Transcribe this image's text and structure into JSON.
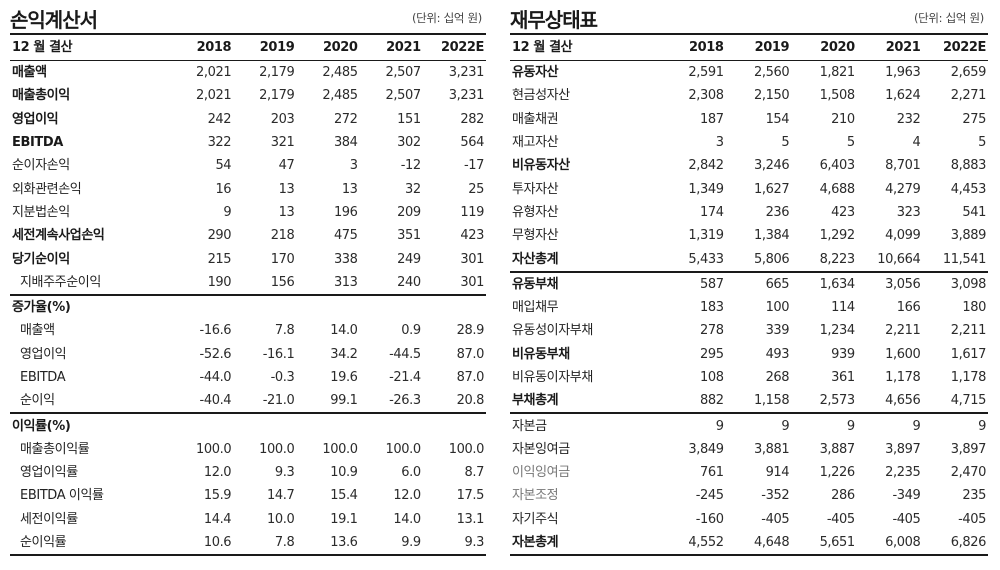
{
  "income_statement": {
    "title": "손익계산서",
    "unit": "(단위: 십억 원)",
    "header": {
      "label": "12 월 결산",
      "years": [
        "2018",
        "2019",
        "2020",
        "2021",
        "2022E"
      ]
    },
    "rows": [
      {
        "label": "매출액",
        "style": "bold",
        "values": [
          "2,021",
          "2,179",
          "2,485",
          "2,507",
          "3,231"
        ]
      },
      {
        "label": "매출총이익",
        "style": "bold",
        "values": [
          "2,021",
          "2,179",
          "2,485",
          "2,507",
          "3,231"
        ]
      },
      {
        "label": "영업이익",
        "style": "bold",
        "values": [
          "242",
          "203",
          "272",
          "151",
          "282"
        ]
      },
      {
        "label": "EBITDA",
        "style": "bold",
        "values": [
          "322",
          "321",
          "384",
          "302",
          "564"
        ]
      },
      {
        "label": "순이자손익",
        "style": "normal",
        "values": [
          "54",
          "47",
          "3",
          "-12",
          "-17"
        ]
      },
      {
        "label": "외화관련손익",
        "style": "normal",
        "values": [
          "16",
          "13",
          "13",
          "32",
          "25"
        ]
      },
      {
        "label": "지분법손익",
        "style": "normal",
        "values": [
          "9",
          "13",
          "196",
          "209",
          "119"
        ]
      },
      {
        "label": "세전계속사업손익",
        "style": "bold",
        "values": [
          "290",
          "218",
          "475",
          "351",
          "423"
        ]
      },
      {
        "label": "당기순이익",
        "style": "bold",
        "values": [
          "215",
          "170",
          "338",
          "249",
          "301"
        ]
      },
      {
        "label": "지배주주순이익",
        "style": "sub",
        "values": [
          "190",
          "156",
          "313",
          "240",
          "301"
        ]
      }
    ],
    "growth": {
      "title": "증가율(%)",
      "rows": [
        {
          "label": "매출액",
          "values": [
            "-16.6",
            "7.8",
            "14.0",
            "0.9",
            "28.9"
          ]
        },
        {
          "label": "영업이익",
          "values": [
            "-52.6",
            "-16.1",
            "34.2",
            "-44.5",
            "87.0"
          ]
        },
        {
          "label": "EBITDA",
          "values": [
            "-44.0",
            "-0.3",
            "19.6",
            "-21.4",
            "87.0"
          ]
        },
        {
          "label": "순이익",
          "values": [
            "-40.4",
            "-21.0",
            "99.1",
            "-26.3",
            "20.8"
          ]
        }
      ]
    },
    "margin": {
      "title": "이익률(%)",
      "rows": [
        {
          "label": "매출총이익률",
          "values": [
            "100.0",
            "100.0",
            "100.0",
            "100.0",
            "100.0"
          ]
        },
        {
          "label": "영업이익률",
          "values": [
            "12.0",
            "9.3",
            "10.9",
            "6.0",
            "8.7"
          ]
        },
        {
          "label": "EBITDA 이익률",
          "values": [
            "15.9",
            "14.7",
            "15.4",
            "12.0",
            "17.5"
          ]
        },
        {
          "label": "세전이익률",
          "values": [
            "14.4",
            "10.0",
            "19.1",
            "14.0",
            "13.1"
          ]
        },
        {
          "label": "순이익률",
          "values": [
            "10.6",
            "7.8",
            "13.6",
            "9.9",
            "9.3"
          ]
        }
      ]
    }
  },
  "balance_sheet": {
    "title": "재무상태표",
    "unit": "(단위: 십억 원)",
    "header": {
      "label": "12 월 결산",
      "years": [
        "2018",
        "2019",
        "2020",
        "2021",
        "2022E"
      ]
    },
    "assets": [
      {
        "label": "유동자산",
        "style": "bold",
        "values": [
          "2,591",
          "2,560",
          "1,821",
          "1,963",
          "2,659"
        ]
      },
      {
        "label": "현금성자산",
        "style": "normal",
        "values": [
          "2,308",
          "2,150",
          "1,508",
          "1,624",
          "2,271"
        ]
      },
      {
        "label": "매출채권",
        "style": "normal",
        "values": [
          "187",
          "154",
          "210",
          "232",
          "275"
        ]
      },
      {
        "label": "재고자산",
        "style": "normal",
        "values": [
          "3",
          "5",
          "5",
          "4",
          "5"
        ]
      },
      {
        "label": "비유동자산",
        "style": "bold",
        "values": [
          "2,842",
          "3,246",
          "6,403",
          "8,701",
          "8,883"
        ]
      },
      {
        "label": "투자자산",
        "style": "normal",
        "values": [
          "1,349",
          "1,627",
          "4,688",
          "4,279",
          "4,453"
        ]
      },
      {
        "label": "유형자산",
        "style": "normal",
        "values": [
          "174",
          "236",
          "423",
          "323",
          "541"
        ]
      },
      {
        "label": "무형자산",
        "style": "normal",
        "values": [
          "1,319",
          "1,384",
          "1,292",
          "4,099",
          "3,889"
        ]
      },
      {
        "label": "자산총계",
        "style": "bold",
        "values": [
          "5,433",
          "5,806",
          "8,223",
          "10,664",
          "11,541"
        ]
      }
    ],
    "liabilities": [
      {
        "label": "유동부채",
        "style": "bold",
        "values": [
          "587",
          "665",
          "1,634",
          "3,056",
          "3,098"
        ]
      },
      {
        "label": "매입채무",
        "style": "normal",
        "values": [
          "183",
          "100",
          "114",
          "166",
          "180"
        ]
      },
      {
        "label": "유동성이자부채",
        "style": "normal",
        "values": [
          "278",
          "339",
          "1,234",
          "2,211",
          "2,211"
        ]
      },
      {
        "label": "비유동부채",
        "style": "bold",
        "values": [
          "295",
          "493",
          "939",
          "1,600",
          "1,617"
        ]
      },
      {
        "label": "비유동이자부채",
        "style": "normal",
        "values": [
          "108",
          "268",
          "361",
          "1,178",
          "1,178"
        ]
      },
      {
        "label": "부채총계",
        "style": "bold",
        "values": [
          "882",
          "1,158",
          "2,573",
          "4,656",
          "4,715"
        ]
      }
    ],
    "equity": [
      {
        "label": "자본금",
        "style": "normal",
        "values": [
          "9",
          "9",
          "9",
          "9",
          "9"
        ]
      },
      {
        "label": "자본잉여금",
        "style": "normal",
        "values": [
          "3,849",
          "3,881",
          "3,887",
          "3,897",
          "3,897"
        ]
      },
      {
        "label": "이익잉여금",
        "style": "normal",
        "values": [
          "761",
          "914",
          "1,226",
          "2,235",
          "2,470"
        ]
      },
      {
        "label": "자본조정",
        "style": "normal",
        "values": [
          "-245",
          "-352",
          "286",
          "-349",
          "235"
        ]
      },
      {
        "label": "자기주식",
        "style": "normal",
        "values": [
          "-160",
          "-405",
          "-405",
          "-405",
          "-405"
        ]
      },
      {
        "label": "자본총계",
        "style": "bold",
        "values": [
          "4,552",
          "4,648",
          "5,651",
          "6,008",
          "6,826"
        ]
      }
    ]
  }
}
